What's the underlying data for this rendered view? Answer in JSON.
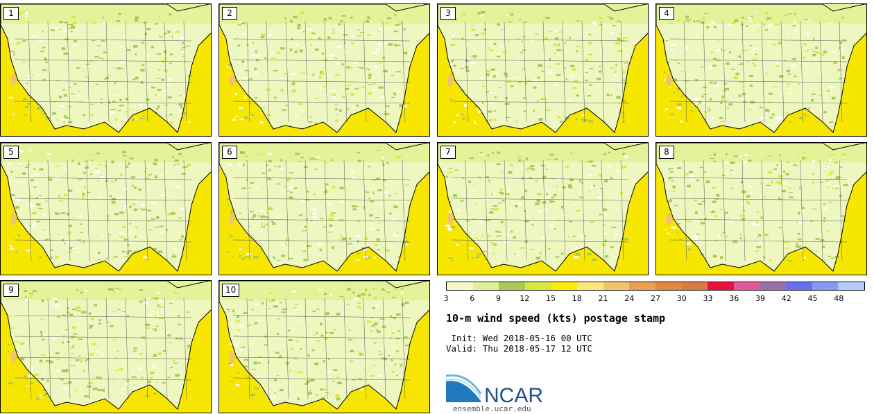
{
  "panels": [
    {
      "label": "1"
    },
    {
      "label": "2"
    },
    {
      "label": "3"
    },
    {
      "label": "4"
    },
    {
      "label": "5"
    },
    {
      "label": "6"
    },
    {
      "label": "7"
    },
    {
      "label": "8"
    },
    {
      "label": "9"
    },
    {
      "label": "10"
    }
  ],
  "colorbar": {
    "colors": [
      "#f6f9c8",
      "#dff09a",
      "#a8c956",
      "#d5ea3e",
      "#fbeb08",
      "#fbe77a",
      "#f2c46a",
      "#eaa052",
      "#e2893e",
      "#d97a40",
      "#e8103c",
      "#e0579a",
      "#9a6fa8",
      "#6a6fee",
      "#8599f5",
      "#b6c9f7"
    ],
    "ticks": [
      "3",
      "6",
      "9",
      "12",
      "15",
      "18",
      "21",
      "24",
      "27",
      "30",
      "33",
      "36",
      "39",
      "42",
      "45",
      "48"
    ]
  },
  "title": "10-m wind speed (kts) postage stamp",
  "init": " Init: Wed 2018-05-16 00 UTC",
  "valid": "Valid: Thu 2018-05-17 12 UTC",
  "logo": {
    "text": "NCAR",
    "url": "ensemble.ucar.edu"
  }
}
